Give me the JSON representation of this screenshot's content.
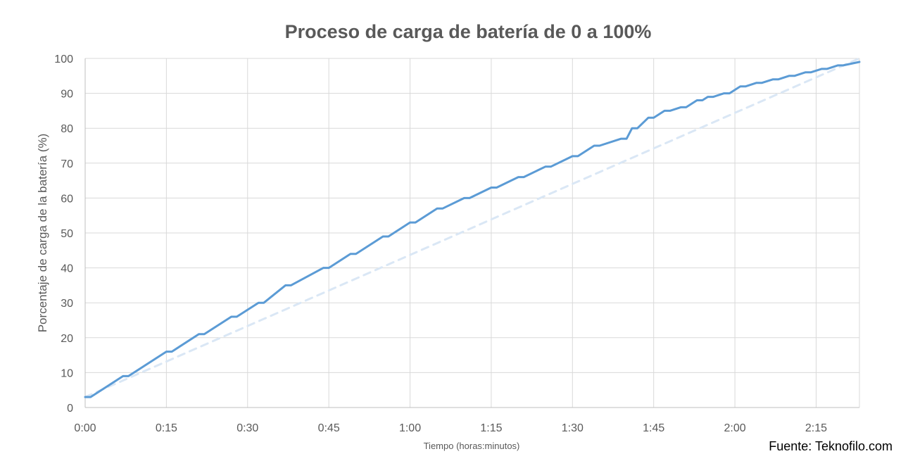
{
  "chart_data": {
    "type": "line",
    "title": "Proceso de carga de batería de 0 a 100%",
    "xlabel": "Tiempo (horas:minutos)",
    "ylabel": "Porcentaje de carga de la batería (%)",
    "x_unit": "minutes",
    "xlim": [
      0,
      143
    ],
    "ylim": [
      0,
      100
    ],
    "x_ticks": [
      {
        "value": 0,
        "label": "0:00"
      },
      {
        "value": 15,
        "label": "0:15"
      },
      {
        "value": 30,
        "label": "0:30"
      },
      {
        "value": 45,
        "label": "0:45"
      },
      {
        "value": 60,
        "label": "1:00"
      },
      {
        "value": 75,
        "label": "1:15"
      },
      {
        "value": 90,
        "label": "1:30"
      },
      {
        "value": 105,
        "label": "1:45"
      },
      {
        "value": 120,
        "label": "2:00"
      },
      {
        "value": 135,
        "label": "2:15"
      }
    ],
    "y_ticks": [
      0,
      10,
      20,
      30,
      40,
      50,
      60,
      70,
      80,
      90,
      100
    ],
    "grid": true,
    "legend": "none",
    "series": [
      {
        "style": "solid",
        "color": "#5b9bd5",
        "x": [
          0,
          1,
          4,
          7,
          8,
          15,
          16,
          21,
          22,
          27,
          28,
          32,
          33,
          37,
          38,
          44,
          45,
          49,
          50,
          55,
          56,
          60,
          61,
          65,
          66,
          70,
          71,
          75,
          76,
          80,
          81,
          85,
          86,
          90,
          91,
          94,
          95,
          99,
          100,
          101,
          102,
          104,
          105,
          107,
          108,
          110,
          111,
          113,
          114,
          115,
          116,
          118,
          119,
          121,
          122,
          124,
          125,
          127,
          128,
          130,
          131,
          133,
          134,
          136,
          137,
          139,
          140,
          143
        ],
        "y": [
          3,
          3,
          6,
          9,
          9,
          16,
          16,
          21,
          21,
          26,
          26,
          30,
          30,
          35,
          35,
          40,
          40,
          44,
          44,
          49,
          49,
          53,
          53,
          57,
          57,
          60,
          60,
          63,
          63,
          66,
          66,
          69,
          69,
          72,
          72,
          75,
          75,
          77,
          77,
          80,
          80,
          83,
          83,
          85,
          85,
          86,
          86,
          88,
          88,
          89,
          89,
          90,
          90,
          92,
          92,
          93,
          93,
          94,
          94,
          95,
          95,
          96,
          96,
          97,
          97,
          98,
          98,
          99
        ]
      },
      {
        "style": "dashed",
        "color": "#dae7f5",
        "x": [
          0,
          143
        ],
        "y": [
          3,
          100
        ]
      }
    ]
  },
  "source": "Fuente: Teknofilo.com"
}
